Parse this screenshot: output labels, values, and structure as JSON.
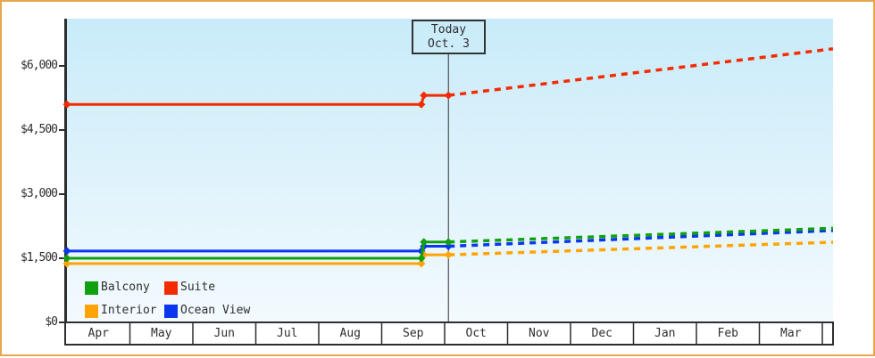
{
  "frame": {
    "border_color": "#EAA64C",
    "background": "#FFFFFF"
  },
  "chart_data": {
    "type": "line",
    "title": "",
    "description": "Cabin price history and forecast by month; solid lines are past prices, dashed lines are projected prices after today.",
    "y_axis": {
      "tick_labels": [
        "$6,000",
        "$4,500",
        "$3,000",
        "$1,500",
        "$0"
      ],
      "tick_values": [
        6000,
        4500,
        3000,
        1500,
        0
      ],
      "range": [
        0,
        7100
      ],
      "grid": false
    },
    "x_axis": {
      "categories": [
        "Apr",
        "May",
        "Jun",
        "Jul",
        "Aug",
        "Sep",
        "Oct",
        "Nov",
        "Dec",
        "Jan",
        "Feb",
        "Mar"
      ]
    },
    "today": {
      "line1": "Today",
      "line2": "Oct. 3",
      "month_position": 6.06
    },
    "series": [
      {
        "name": "Ocean View",
        "color": "#0A36EE",
        "style_history": "solid",
        "style_forecast": "dashed",
        "history": [
          [
            0,
            1670
          ],
          [
            5.63,
            1670
          ],
          [
            5.67,
            1780
          ],
          [
            6.06,
            1780
          ]
        ],
        "forecast": [
          [
            6.06,
            1780
          ],
          [
            12.17,
            2150
          ]
        ]
      },
      {
        "name": "Interior",
        "color": "#FFA404",
        "style_history": "solid",
        "style_forecast": "dashed",
        "history": [
          [
            0,
            1375
          ],
          [
            5.63,
            1375
          ],
          [
            5.67,
            1580
          ],
          [
            6.06,
            1580
          ]
        ],
        "forecast": [
          [
            6.06,
            1580
          ],
          [
            12.17,
            1875
          ]
        ]
      },
      {
        "name": "Balcony",
        "color": "#10A010",
        "style_history": "solid",
        "style_forecast": "dashed",
        "history": [
          [
            0,
            1500
          ],
          [
            5.63,
            1500
          ],
          [
            5.67,
            1880
          ],
          [
            6.06,
            1880
          ]
        ],
        "forecast": [
          [
            6.06,
            1880
          ],
          [
            12.17,
            2200
          ]
        ]
      },
      {
        "name": "Suite",
        "color": "#F32B00",
        "style_history": "solid",
        "style_forecast": "dashed",
        "history": [
          [
            0,
            5100
          ],
          [
            5.63,
            5100
          ],
          [
            5.67,
            5310
          ],
          [
            6.06,
            5310
          ]
        ],
        "forecast": [
          [
            6.06,
            5310
          ],
          [
            12.17,
            6400
          ]
        ]
      }
    ],
    "legend": [
      {
        "label": "Balcony",
        "color": "#10A010"
      },
      {
        "label": "Suite",
        "color": "#F32B00"
      },
      {
        "label": "Interior",
        "color": "#FFA404"
      },
      {
        "label": "Ocean View",
        "color": "#0A36EE"
      }
    ],
    "plot_colors": {
      "bg_top": "#C9EBF9",
      "bg_bottom": "#F3FAFE",
      "axis": "#2E2E2E",
      "today_line": "#333333"
    },
    "legend_position": "bottom-left"
  }
}
